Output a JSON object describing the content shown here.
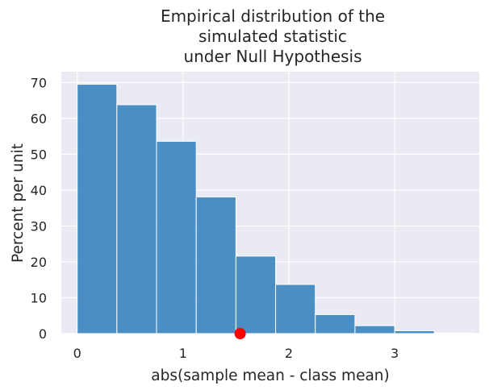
{
  "chart_data": {
    "type": "bar",
    "title_lines": [
      "Empirical distribution of the",
      "simulated statistic",
      "under Null Hypothesis"
    ],
    "xlabel": "abs(sample mean - class mean)",
    "ylabel": "Percent per unit",
    "xlim": [
      -0.15,
      3.8
    ],
    "ylim": [
      0,
      73
    ],
    "xticks": [
      0,
      1,
      2,
      3
    ],
    "yticks": [
      0,
      10,
      20,
      30,
      40,
      50,
      60,
      70
    ],
    "grid": true,
    "bins": [
      {
        "start": 0.0,
        "end": 0.375,
        "value": 69.5
      },
      {
        "start": 0.375,
        "end": 0.75,
        "value": 63.8
      },
      {
        "start": 0.75,
        "end": 1.125,
        "value": 53.6
      },
      {
        "start": 1.125,
        "end": 1.5,
        "value": 38.1
      },
      {
        "start": 1.5,
        "end": 1.875,
        "value": 21.6
      },
      {
        "start": 1.875,
        "end": 2.25,
        "value": 13.7
      },
      {
        "start": 2.25,
        "end": 2.625,
        "value": 5.3
      },
      {
        "start": 2.625,
        "end": 3.0,
        "value": 2.2
      },
      {
        "start": 3.0,
        "end": 3.375,
        "value": 0.8
      },
      {
        "start": 3.375,
        "end": 3.75,
        "value": 0.2
      }
    ],
    "observed_point": {
      "x": 1.54,
      "y": 0
    },
    "colors": {
      "bar": "#2f7ebc",
      "bar_edge": "#ffffff",
      "point": "#ff0000",
      "plot_background": "#eaeaf2",
      "grid": "#ffffff",
      "text": "#262626"
    }
  }
}
